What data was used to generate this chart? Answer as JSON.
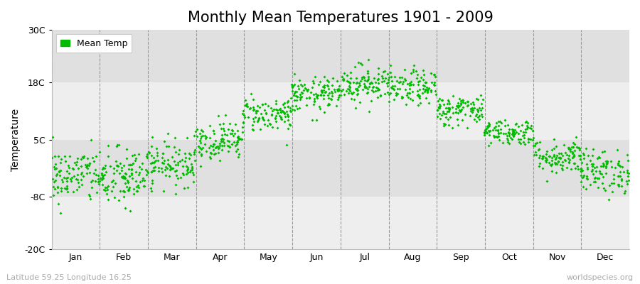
{
  "title": "Monthly Mean Temperatures 1901 - 2009",
  "ylabel": "Temperature",
  "subtitle": "Latitude 59.25 Longitude 16.25",
  "watermark": "worldspecies.org",
  "legend_label": "Mean Temp",
  "marker_color": "#00BB00",
  "background_color": "#FFFFFF",
  "plot_bg_light": "#EEEEEE",
  "plot_bg_dark": "#E0E0E0",
  "yticks": [
    -20,
    -8,
    5,
    18,
    30
  ],
  "ytick_labels": [
    "-20C",
    "-8C",
    "5C",
    "18C",
    "30C"
  ],
  "months": [
    "Jan",
    "Feb",
    "Mar",
    "Apr",
    "May",
    "Jun",
    "Jul",
    "Aug",
    "Sep",
    "Oct",
    "Nov",
    "Dec"
  ],
  "mean_temps": [
    -3.2,
    -3.8,
    -0.5,
    4.8,
    10.8,
    15.2,
    17.8,
    16.8,
    11.8,
    6.8,
    1.2,
    -2.2
  ],
  "std_temps": [
    3.2,
    3.5,
    2.5,
    2.2,
    2.0,
    2.0,
    2.2,
    2.0,
    1.8,
    1.5,
    2.0,
    2.5
  ],
  "n_years": 109,
  "seed": 42,
  "title_fontsize": 15,
  "axis_label_fontsize": 10,
  "tick_fontsize": 9,
  "subtitle_fontsize": 8,
  "watermark_fontsize": 8
}
